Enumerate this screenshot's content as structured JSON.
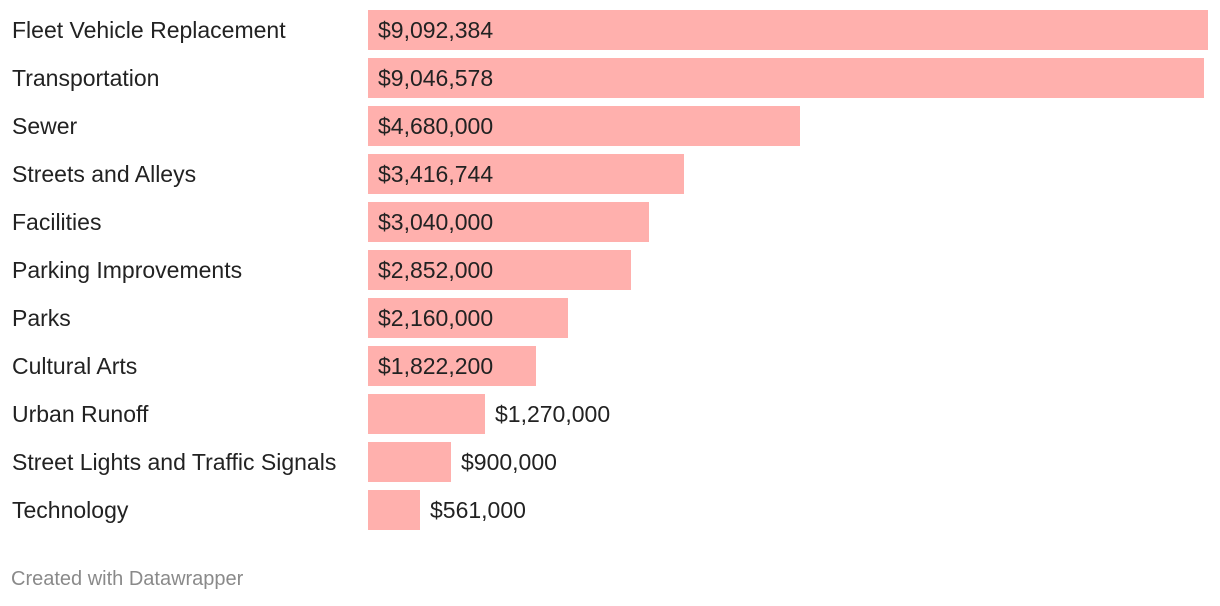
{
  "chart_data": {
    "type": "bar",
    "orientation": "horizontal",
    "categories": [
      "Fleet Vehicle Replacement",
      "Transportation",
      "Sewer",
      "Streets and Alleys",
      "Facilities",
      "Parking Improvements",
      "Parks",
      "Cultural Arts",
      "Urban Runoff",
      "Street Lights and Traffic Signals",
      "Technology"
    ],
    "values": [
      9092384,
      9046578,
      4680000,
      3416744,
      3040000,
      2852000,
      2160000,
      1822200,
      1270000,
      900000,
      561000
    ],
    "value_labels": [
      "$9,092,384",
      "$9,046,578",
      "$4,680,000",
      "$3,416,744",
      "$3,040,000",
      "$2,852,000",
      "$2,160,000",
      "$1,822,200",
      "$1,270,000",
      "$900,000",
      "$561,000"
    ],
    "bar_color": "#ffb0ad",
    "grid": false,
    "legend": "none"
  },
  "footer": {
    "credit": "Created with Datawrapper"
  }
}
